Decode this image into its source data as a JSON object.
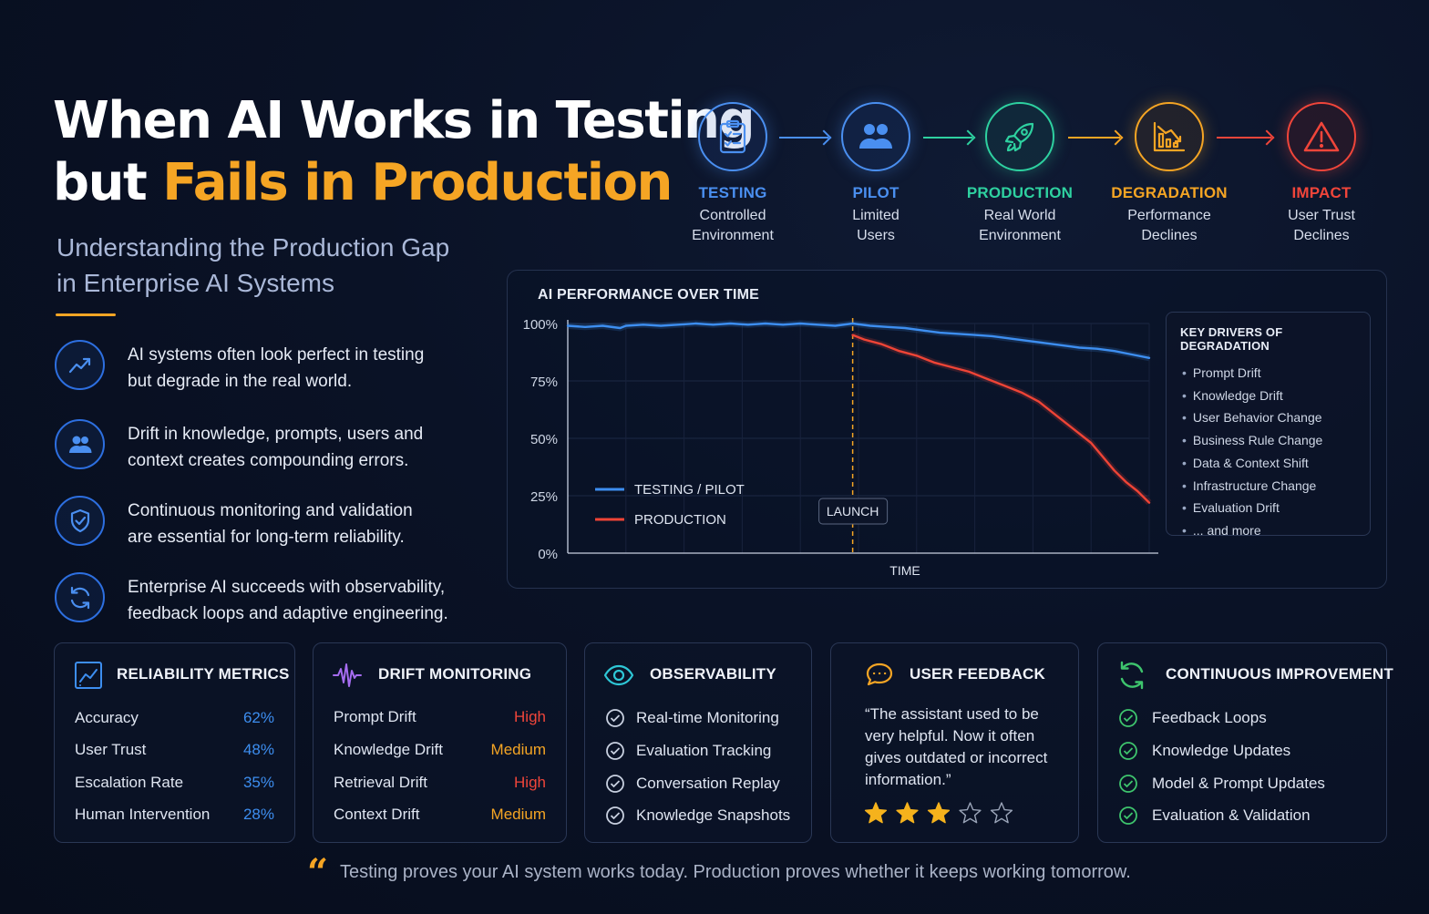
{
  "title": {
    "line1": "When AI Works in Testing",
    "line2_prefix": "but ",
    "line2_accent": "Fails in Production",
    "subtitle_line1": "Understanding the Production Gap",
    "subtitle_line2": "in Enterprise AI Systems"
  },
  "points": [
    {
      "icon": "trend-up-icon",
      "line1": "AI systems often look perfect in testing",
      "line2": "but degrade in the real world."
    },
    {
      "icon": "users-icon",
      "line1": "Drift in knowledge, prompts, users and",
      "line2": "context creates compounding errors."
    },
    {
      "icon": "shield-check-icon",
      "line1": "Continuous monitoring and validation",
      "line2": "are essential for long-term reliability."
    },
    {
      "icon": "refresh-icon",
      "line1": "Enterprise AI succeeds with observability,",
      "line2": "feedback loops and adaptive engineering."
    }
  ],
  "pipeline": [
    {
      "name": "TESTING",
      "desc1": "Controlled",
      "desc2": "Environment",
      "color": "#4a8ff0",
      "icon": "clipboard-check-icon"
    },
    {
      "name": "PILOT",
      "desc1": "Limited",
      "desc2": "Users",
      "color": "#4a8ff0",
      "icon": "users-icon"
    },
    {
      "name": "PRODUCTION",
      "desc1": "Real World",
      "desc2": "Environment",
      "color": "#2ed1a0",
      "icon": "rocket-icon"
    },
    {
      "name": "DEGRADATION",
      "desc1": "Performance",
      "desc2": "Declines",
      "color": "#f5a524",
      "icon": "declining-chart-icon"
    },
    {
      "name": "IMPACT",
      "desc1": "User Trust",
      "desc2": "Declines",
      "color": "#f0453a",
      "icon": "warning-icon"
    }
  ],
  "chart_data": {
    "type": "line",
    "title": "AI PERFORMANCE OVER TIME",
    "xlabel": "TIME",
    "ylabel": "",
    "ylim": [
      0,
      100
    ],
    "yticks": [
      "100%",
      "75%",
      "50%",
      "25%",
      "0%"
    ],
    "xlim": [
      0,
      100
    ],
    "grid": true,
    "legend_position": "bottom-left",
    "launch_x": 49,
    "launch_label": "LAUNCH",
    "series": [
      {
        "name": "TESTING / PILOT",
        "color": "#3d8ef0",
        "x": [
          0,
          3,
          6,
          9,
          10,
          13,
          16,
          19,
          22,
          25,
          28,
          31,
          34,
          37,
          40,
          43,
          46,
          49,
          52,
          55,
          58,
          61,
          64,
          67,
          70,
          73,
          76,
          79,
          82,
          85,
          88,
          91,
          94,
          97,
          100
        ],
        "y": [
          99,
          98.5,
          99,
          98,
          99,
          99.5,
          99,
          99.5,
          100,
          99.5,
          100,
          99.5,
          100,
          99.5,
          100,
          99.5,
          99,
          100,
          99,
          98.5,
          98,
          97,
          96,
          95.5,
          95,
          94.5,
          93.5,
          92.5,
          91.5,
          90.5,
          89.5,
          89,
          88,
          86.5,
          85
        ]
      },
      {
        "name": "PRODUCTION",
        "color": "#ef4436",
        "x": [
          49,
          51,
          54,
          57,
          60,
          63,
          66,
          69,
          72,
          75,
          78,
          81,
          84,
          87,
          90,
          92,
          94,
          96,
          98,
          100
        ],
        "y": [
          95,
          93,
          91,
          88,
          86,
          83,
          81,
          79,
          76,
          73,
          70,
          66,
          60,
          54,
          48,
          42,
          36,
          31,
          27,
          22
        ]
      }
    ],
    "drivers_title": "KEY DRIVERS OF DEGRADATION",
    "drivers": [
      "Prompt Drift",
      "Knowledge Drift",
      "User Behavior Change",
      "Business Rule Change",
      "Data & Context Shift",
      "Infrastructure Change",
      "Evaluation Drift",
      "... and more"
    ]
  },
  "cards": {
    "reliability": {
      "title": "RELIABILITY METRICS",
      "rows": [
        {
          "label": "Accuracy",
          "value": "62%"
        },
        {
          "label": "User Trust",
          "value": "48%"
        },
        {
          "label": "Escalation Rate",
          "value": "35%"
        },
        {
          "label": "Human Intervention",
          "value": "28%"
        }
      ],
      "value_color": "#3d8ef0"
    },
    "drift": {
      "title": "DRIFT MONITORING",
      "rows": [
        {
          "label": "Prompt Drift",
          "value": "High",
          "color": "#f0453a"
        },
        {
          "label": "Knowledge Drift",
          "value": "Medium",
          "color": "#f5a524"
        },
        {
          "label": "Retrieval Drift",
          "value": "High",
          "color": "#f0453a"
        },
        {
          "label": "Context Drift",
          "value": "Medium",
          "color": "#f5a524"
        }
      ]
    },
    "observability": {
      "title": "OBSERVABILITY",
      "items": [
        "Real-time Monitoring",
        "Evaluation Tracking",
        "Conversation Replay",
        "Knowledge Snapshots"
      ]
    },
    "feedback": {
      "title": "USER FEEDBACK",
      "quote": "“The assistant used to be very helpful. Now it often gives outdated or incorrect information.”",
      "rating": 3,
      "rating_max": 5
    },
    "improvement": {
      "title": "CONTINUOUS IMPROVEMENT",
      "items": [
        "Feedback Loops",
        "Knowledge Updates",
        "Model & Prompt Updates",
        "Evaluation & Validation"
      ]
    }
  },
  "footer": {
    "mark": "“",
    "text": "Testing proves your AI system works today. Production proves whether it keeps working tomorrow."
  }
}
